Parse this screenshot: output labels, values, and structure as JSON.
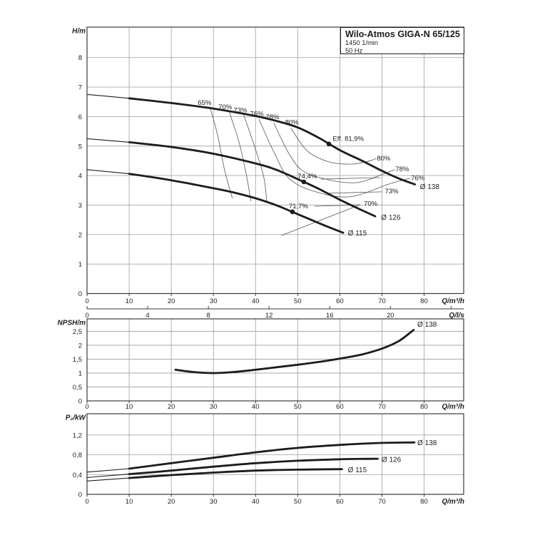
{
  "title_box": {
    "model": "Wilo-Atmos GIGA-N 65/125",
    "speed": "1450 1/min",
    "frequency": "50 Hz"
  },
  "colors": {
    "curve": "#1c1c1a",
    "grid": "#a9a9a8",
    "border": "#3a3a38",
    "contour": "#55554f",
    "text": "#1d1d1b"
  },
  "chart_data": [
    {
      "id": "head",
      "type": "line",
      "ylabel": "H/m",
      "xlabel": "Q/m³/h",
      "xlim": [
        0,
        89.4
      ],
      "ylim": [
        0,
        9.03
      ],
      "grid": true,
      "xticks": {
        "values": [
          0,
          10,
          20,
          30,
          40,
          50,
          60,
          70,
          80
        ],
        "labels": [
          "0",
          "10",
          "20",
          "30",
          "40",
          "50",
          "60",
          "70",
          "80"
        ]
      },
      "yticks": {
        "values": [
          0,
          1,
          2,
          3,
          4,
          5,
          6,
          7,
          8
        ],
        "labels": [
          "0",
          "1",
          "2",
          "3",
          "4",
          "5",
          "6",
          "7",
          "8"
        ]
      },
      "x2axis": {
        "label": "Q/l/s",
        "m3h_per_unit": 3.6,
        "values": [
          0,
          4,
          8,
          12,
          16,
          20,
          24
        ],
        "labels": [
          "0",
          "4",
          "8",
          "12",
          "16",
          "20",
          ""
        ]
      },
      "series": [
        {
          "name": "Ø 138",
          "thin_until": 9,
          "x": [
            0,
            10,
            20,
            30,
            40,
            45,
            50,
            55,
            60,
            65,
            70,
            74,
            77.8
          ],
          "y": [
            6.75,
            6.62,
            6.46,
            6.27,
            6.02,
            5.85,
            5.63,
            5.28,
            4.86,
            4.52,
            4.16,
            3.9,
            3.7
          ],
          "label": {
            "text": "Ø 138",
            "q": 79.0,
            "v": 3.62,
            "anchor": "start"
          }
        },
        {
          "name": "Ø 126",
          "thin_until": 9,
          "x": [
            0,
            10,
            20,
            30,
            40,
            45,
            51.4,
            55,
            60,
            65,
            68.4
          ],
          "y": [
            5.25,
            5.13,
            4.97,
            4.74,
            4.41,
            4.19,
            3.79,
            3.55,
            3.18,
            2.84,
            2.62
          ],
          "label": {
            "text": "Ø 126",
            "q": 69.8,
            "v": 2.58,
            "anchor": "start"
          }
        },
        {
          "name": "Ø 115",
          "thin_until": 9,
          "x": [
            0,
            10,
            20,
            30,
            35,
            40,
            45,
            48.7,
            53,
            57,
            60.8
          ],
          "y": [
            4.2,
            4.06,
            3.84,
            3.57,
            3.42,
            3.23,
            2.99,
            2.77,
            2.51,
            2.27,
            2.06
          ],
          "label": {
            "text": "Ø 115",
            "q": 61.9,
            "v": 2.04,
            "anchor": "start"
          }
        }
      ],
      "contours": [
        {
          "name": "65%",
          "points": [
            [
              29.1,
              6.35
            ],
            [
              31.0,
              5.36
            ],
            [
              32.7,
              4.15
            ],
            [
              34.5,
              3.23
            ]
          ]
        },
        {
          "name": "70%",
          "points": [
            [
              33.7,
              6.18
            ],
            [
              36.1,
              5.12
            ],
            [
              37.8,
              4.03
            ],
            [
              38.9,
              3.13
            ]
          ]
        },
        {
          "name": "73%",
          "points": [
            [
              37.2,
              6.06
            ],
            [
              40.3,
              4.75
            ],
            [
              42.0,
              3.91
            ],
            [
              42.7,
              3.06
            ]
          ]
        },
        {
          "name": "76%",
          "points": [
            [
              40.8,
              5.91
            ],
            [
              44.5,
              4.75
            ],
            [
              47.9,
              3.91
            ],
            [
              53.8,
              3.47
            ],
            [
              62.3,
              3.28
            ],
            [
              71.6,
              3.71
            ],
            [
              76.7,
              3.91
            ]
          ]
        },
        {
          "name": "78%",
          "points": [
            [
              44.3,
              5.79
            ],
            [
              47.9,
              4.75
            ],
            [
              51.3,
              4.15
            ],
            [
              57.2,
              3.86
            ],
            [
              64.0,
              3.76
            ],
            [
              69.9,
              4.03
            ],
            [
              73.0,
              4.2
            ]
          ]
        },
        {
          "name": "80%",
          "points": [
            [
              48.4,
              5.6
            ],
            [
              51.3,
              4.99
            ],
            [
              53.8,
              4.68
            ],
            [
              58.1,
              4.44
            ],
            [
              63.1,
              4.39
            ],
            [
              66.9,
              4.49
            ],
            [
              68.7,
              4.58
            ]
          ]
        }
      ],
      "leaders": [
        {
          "name": "73%-right",
          "from": [
            57.2,
            3.4
          ],
          "to": [
            70.1,
            3.45
          ]
        },
        {
          "name": "74,4%-right",
          "from": [
            55.5,
            3.88
          ],
          "to": [
            69.6,
            3.93
          ]
        },
        {
          "name": "71,7%-right",
          "from": [
            54.0,
            2.96
          ],
          "to": [
            64.8,
            3.01
          ]
        },
        {
          "name": "70%-diagonal",
          "from": [
            46.2,
            1.97
          ],
          "to": [
            64.8,
            3.01
          ]
        }
      ],
      "contour_labels": [
        {
          "text": "65%",
          "q": 27.9,
          "v": 6.47
        },
        {
          "text": "70%",
          "q": 32.8,
          "v": 6.32
        },
        {
          "text": "73%",
          "q": 36.4,
          "v": 6.22
        },
        {
          "text": "76%",
          "q": 40.3,
          "v": 6.1
        },
        {
          "text": "78%",
          "q": 44.0,
          "v": 5.98
        },
        {
          "text": "80%",
          "q": 48.6,
          "v": 5.81
        },
        {
          "text": "80%",
          "q": 70.4,
          "v": 4.58
        },
        {
          "text": "78%",
          "q": 74.8,
          "v": 4.22
        },
        {
          "text": "76%",
          "q": 78.5,
          "v": 3.92
        },
        {
          "text": "73%",
          "q": 72.3,
          "v": 3.47
        },
        {
          "text": "70%",
          "q": 67.3,
          "v": 3.05
        }
      ],
      "marked_points": [
        {
          "label": "Eff. 81,9%",
          "q": 57.4,
          "v": 5.07,
          "label_q": 58.3,
          "label_v": 5.25,
          "anchor": "start"
        },
        {
          "label": "74,4%",
          "q": 51.45,
          "v": 3.785,
          "label_q": 50.0,
          "label_v": 3.98,
          "anchor": "start"
        },
        {
          "label": "71,7%",
          "q": 48.75,
          "v": 2.77,
          "label_q": 47.9,
          "label_v": 2.96,
          "anchor": "start"
        }
      ]
    },
    {
      "id": "npsh",
      "type": "line",
      "ylabel": "NPSH/m",
      "xlabel": "Q/m³/h",
      "xlim": [
        0,
        89.4
      ],
      "ylim": [
        0,
        2.95
      ],
      "grid": true,
      "xticks": {
        "values": [
          0,
          10,
          20,
          30,
          40,
          50,
          60,
          70,
          80
        ],
        "labels": [
          "0",
          "10",
          "20",
          "30",
          "40",
          "50",
          "60",
          "70",
          "80"
        ]
      },
      "yticks": {
        "values": [
          0,
          0.5,
          1,
          1.5,
          2,
          2.5
        ],
        "labels": [
          "0",
          "0,5",
          "1",
          "1,5",
          "2",
          "2,5"
        ]
      },
      "series": [
        {
          "name": "Ø 138",
          "x": [
            21,
            25,
            30,
            35,
            40,
            45,
            50,
            55,
            60,
            65,
            70,
            74,
            77.5
          ],
          "y": [
            1.12,
            1.04,
            1.0,
            1.04,
            1.12,
            1.21,
            1.3,
            1.4,
            1.52,
            1.66,
            1.88,
            2.15,
            2.55
          ],
          "label": {
            "text": "Ø 138",
            "q": 78.4,
            "v": 2.74,
            "anchor": "start"
          }
        }
      ]
    },
    {
      "id": "p2",
      "type": "line",
      "ylabel": "P₂/kW",
      "xlabel": "Q/m³/h",
      "xlim": [
        0,
        89.4
      ],
      "ylim": [
        0,
        1.63
      ],
      "grid": true,
      "xticks": {
        "values": [
          0,
          10,
          20,
          30,
          40,
          50,
          60,
          70,
          80
        ],
        "labels": [
          "0",
          "10",
          "20",
          "30",
          "40",
          "50",
          "60",
          "70",
          "80"
        ]
      },
      "yticks": {
        "values": [
          0,
          0.4,
          0.8,
          1.2
        ],
        "labels": [
          "0",
          "0,4",
          "0,8",
          "1,2"
        ]
      },
      "series": [
        {
          "name": "Ø 138",
          "thin_until": 7.5,
          "x": [
            0,
            10,
            20,
            30,
            40,
            50,
            60,
            70,
            77.7
          ],
          "y": [
            0.45,
            0.52,
            0.63,
            0.74,
            0.85,
            0.94,
            1.0,
            1.04,
            1.05
          ],
          "label": {
            "text": "Ø 138",
            "q": 78.4,
            "v": 1.04,
            "anchor": "start"
          }
        },
        {
          "name": "Ø 126",
          "thin_until": 7.5,
          "x": [
            0,
            10,
            20,
            30,
            40,
            50,
            60,
            69
          ],
          "y": [
            0.34,
            0.41,
            0.48,
            0.56,
            0.63,
            0.68,
            0.71,
            0.72
          ],
          "label": {
            "text": "Ø 126",
            "q": 69.9,
            "v": 0.7,
            "anchor": "start"
          }
        },
        {
          "name": "Ø 115",
          "thin_until": 7.5,
          "x": [
            0,
            10,
            20,
            30,
            40,
            50,
            60.5
          ],
          "y": [
            0.27,
            0.33,
            0.39,
            0.44,
            0.48,
            0.5,
            0.51
          ],
          "label": {
            "text": "Ø 115",
            "q": 61.9,
            "v": 0.49,
            "anchor": "start"
          }
        }
      ]
    }
  ]
}
